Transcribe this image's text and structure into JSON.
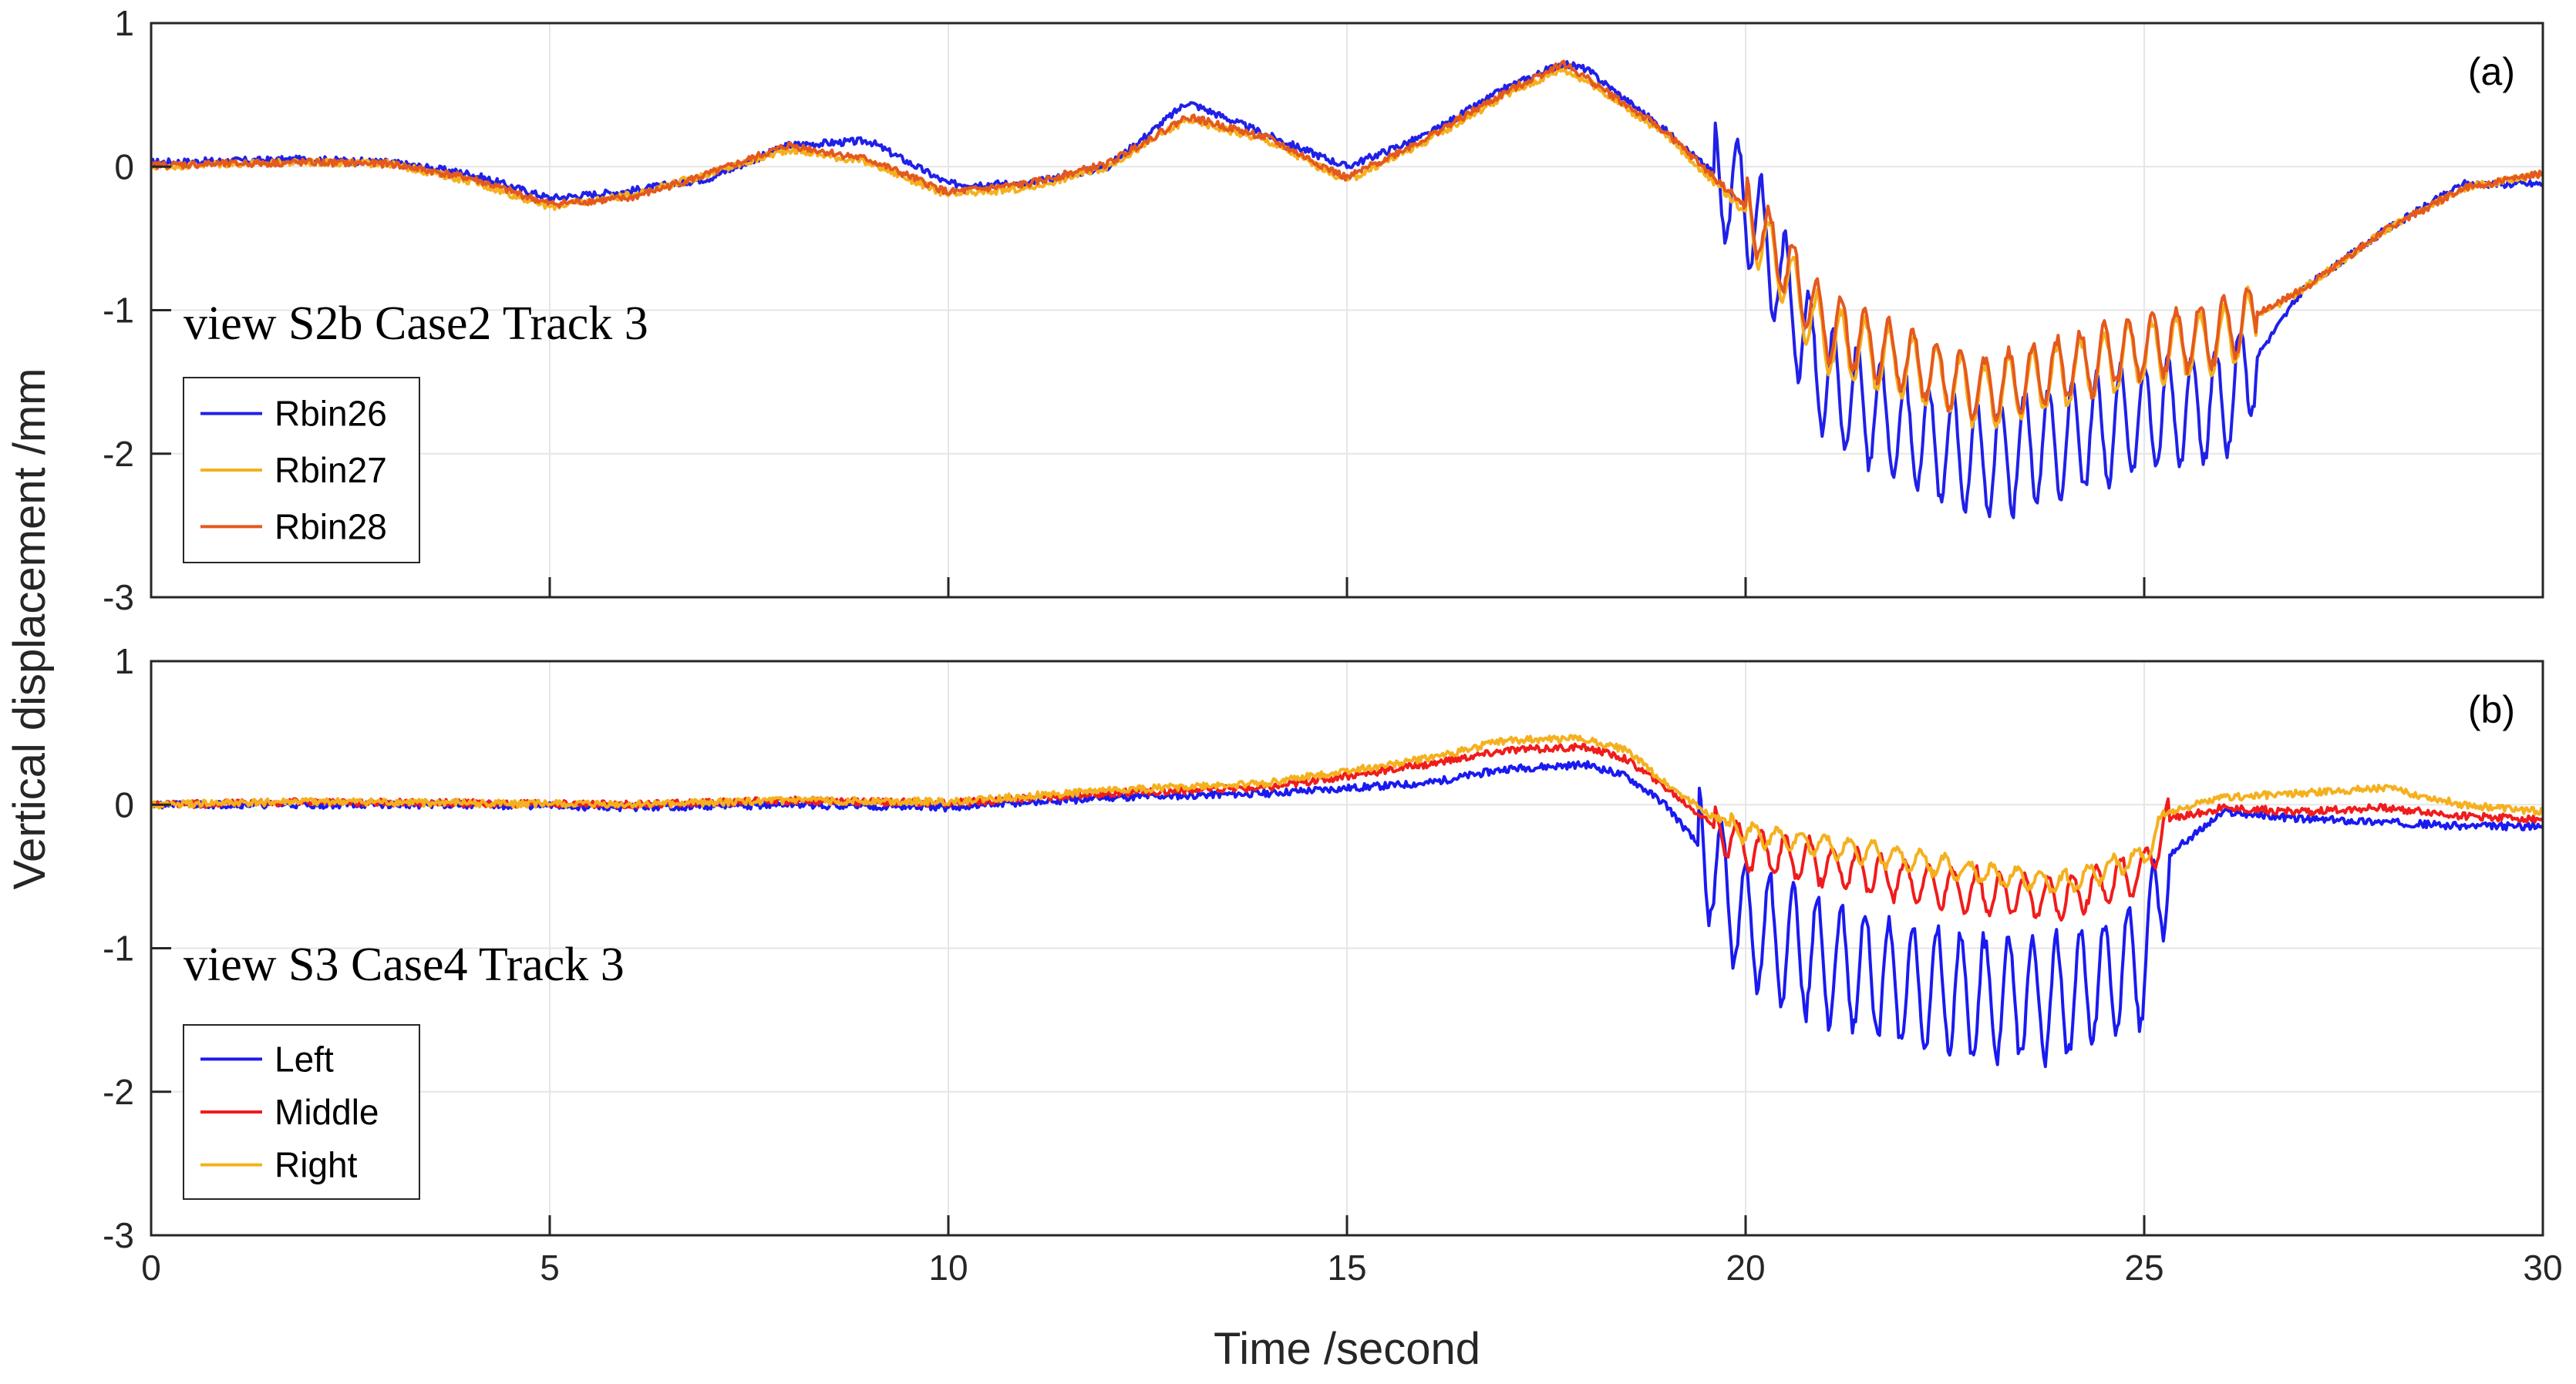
{
  "figure": {
    "ylabel": "Vertical displacement /mm",
    "xlabel": "Time /second"
  },
  "chart_data": [
    {
      "type": "line",
      "panel_label": "(a)",
      "annotation": "view S2b Case2 Track 3",
      "xlim": [
        0,
        30
      ],
      "ylim": [
        -3,
        1
      ],
      "xticks": [
        0,
        5,
        10,
        15,
        20,
        25,
        30
      ],
      "yticks": [
        1,
        0,
        -1,
        -2,
        -3
      ],
      "grid": true,
      "legend_position": "lower-left",
      "series": [
        {
          "name": "Rbin26",
          "color": "#2020e8",
          "x": [
            0,
            1,
            2,
            3,
            4,
            5,
            6,
            7,
            8,
            9,
            10,
            11,
            12,
            13,
            14,
            15,
            16,
            17,
            17.7,
            18,
            19,
            20,
            21,
            22,
            23,
            24,
            25,
            26,
            27,
            28,
            29,
            30
          ],
          "y": [
            0.03,
            0.04,
            0.05,
            0.03,
            -0.05,
            -0.22,
            -0.17,
            -0.08,
            0.15,
            0.18,
            -0.12,
            -0.12,
            0.0,
            0.45,
            0.22,
            0.0,
            0.22,
            0.55,
            0.72,
            0.68,
            0.25,
            -0.25,
            -1.5,
            -1.85,
            -2.05,
            -1.9,
            -1.75,
            -1.65,
            -0.85,
            -0.45,
            -0.12,
            -0.12
          ],
          "oscillation": {
            "start": 19.6,
            "end": 26.4,
            "period": 0.3,
            "amplitude": 0.38
          }
        },
        {
          "name": "Rbin27",
          "color": "#f5b01e",
          "x": [
            0,
            1,
            2,
            3,
            4,
            5,
            6,
            7,
            8,
            9,
            10,
            11,
            12,
            13,
            14,
            15,
            16,
            17,
            17.7,
            18,
            19,
            20,
            21,
            22,
            23,
            24,
            25,
            26,
            27,
            28,
            29,
            30
          ],
          "y": [
            0.0,
            0.02,
            0.03,
            0.02,
            -0.1,
            -0.28,
            -0.2,
            -0.05,
            0.12,
            0.03,
            -0.2,
            -0.15,
            0.0,
            0.33,
            0.18,
            -0.1,
            0.18,
            0.5,
            0.68,
            0.6,
            0.22,
            -0.32,
            -1.2,
            -1.4,
            -1.6,
            -1.45,
            -1.3,
            -1.2,
            -0.85,
            -0.45,
            -0.15,
            -0.05
          ],
          "oscillation": {
            "start": 20.0,
            "end": 26.4,
            "period": 0.3,
            "amplitude": 0.22
          }
        },
        {
          "name": "Rbin28",
          "color": "#e4591e",
          "x": [
            0,
            1,
            2,
            3,
            4,
            5,
            6,
            7,
            8,
            9,
            10,
            11,
            12,
            13,
            14,
            15,
            16,
            17,
            17.7,
            18,
            19,
            20,
            21,
            22,
            23,
            24,
            25,
            26,
            27,
            28,
            29,
            30
          ],
          "y": [
            0.01,
            0.02,
            0.03,
            0.02,
            -0.08,
            -0.26,
            -0.22,
            -0.05,
            0.15,
            0.05,
            -0.18,
            -0.12,
            0.02,
            0.35,
            0.2,
            -0.08,
            0.2,
            0.52,
            0.72,
            0.62,
            0.24,
            -0.28,
            -1.1,
            -1.35,
            -1.55,
            -1.4,
            -1.25,
            -1.15,
            -0.85,
            -0.45,
            -0.15,
            -0.05
          ],
          "oscillation": {
            "start": 20.0,
            "end": 26.4,
            "period": 0.3,
            "amplitude": 0.22
          }
        }
      ]
    },
    {
      "type": "line",
      "panel_label": "(b)",
      "annotation": "view S3 Case4 Track 3",
      "xlim": [
        0,
        30
      ],
      "ylim": [
        -3,
        1
      ],
      "xticks": [
        0,
        5,
        10,
        15,
        20,
        25,
        30
      ],
      "yticks": [
        1,
        0,
        -1,
        -2,
        -3
      ],
      "grid": true,
      "legend_position": "lower-left",
      "series": [
        {
          "name": "Left",
          "color": "#1a1af0",
          "x": [
            0,
            2,
            4,
            6,
            8,
            10,
            12,
            14,
            16,
            17,
            18,
            18.5,
            19,
            19.5,
            20,
            21,
            22,
            23,
            24,
            25,
            25.3,
            26,
            27,
            28,
            29,
            30
          ],
          "y": [
            0.0,
            0.0,
            0.0,
            -0.02,
            0.0,
            -0.02,
            0.05,
            0.08,
            0.15,
            0.25,
            0.28,
            0.2,
            0.0,
            -0.35,
            -0.85,
            -1.1,
            -1.25,
            -1.35,
            -1.35,
            -1.1,
            -0.35,
            -0.05,
            -0.1,
            -0.12,
            -0.15,
            -0.15
          ],
          "oscillation": {
            "start": 19.4,
            "end": 25.3,
            "period": 0.3,
            "amplitude": 0.42
          }
        },
        {
          "name": "Middle",
          "color": "#f01c1c",
          "x": [
            0,
            2,
            4,
            6,
            8,
            10,
            12,
            14,
            16,
            17,
            18,
            18.5,
            19,
            19.5,
            20,
            21,
            22,
            23,
            24,
            25,
            25.3,
            26,
            27,
            28,
            29,
            30
          ],
          "y": [
            0.0,
            0.02,
            0.01,
            0.0,
            0.03,
            0.01,
            0.08,
            0.12,
            0.28,
            0.38,
            0.4,
            0.32,
            0.12,
            -0.1,
            -0.3,
            -0.42,
            -0.52,
            -0.62,
            -0.65,
            -0.45,
            -0.1,
            -0.02,
            -0.05,
            -0.02,
            -0.08,
            -0.1
          ],
          "oscillation": {
            "start": 19.6,
            "end": 25.3,
            "period": 0.3,
            "amplitude": 0.14
          }
        },
        {
          "name": "Right",
          "color": "#f5b01e",
          "x": [
            0,
            2,
            4,
            6,
            8,
            10,
            12,
            14,
            16,
            17,
            18,
            18.5,
            19,
            19.5,
            20,
            21,
            22,
            23,
            24,
            25,
            25.3,
            26,
            27,
            28,
            29,
            30
          ],
          "y": [
            0.0,
            0.02,
            0.01,
            0.0,
            0.03,
            0.02,
            0.1,
            0.15,
            0.32,
            0.45,
            0.46,
            0.38,
            0.15,
            -0.05,
            -0.2,
            -0.28,
            -0.38,
            -0.48,
            -0.55,
            -0.35,
            -0.05,
            0.05,
            0.08,
            0.12,
            0.0,
            -0.05
          ],
          "oscillation": {
            "start": 19.8,
            "end": 25.3,
            "period": 0.3,
            "amplitude": 0.07
          }
        }
      ]
    }
  ]
}
